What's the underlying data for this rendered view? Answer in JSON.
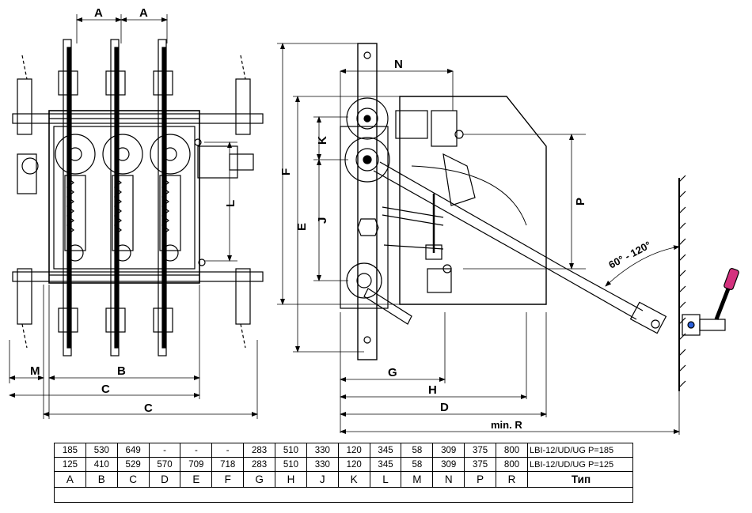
{
  "front_view": {
    "dim_labels": {
      "a1": "A",
      "a2": "A",
      "l": "L",
      "m": "M",
      "b": "B",
      "c_inner": "C",
      "c_outer": "C"
    }
  },
  "side_view": {
    "dim_labels": {
      "n": "N",
      "f": "F",
      "e": "E",
      "k": "K",
      "j": "J",
      "p": "P",
      "g": "G",
      "h": "H",
      "d": "D",
      "min_r": "min. R"
    },
    "angle_label": "60° - 120°"
  },
  "spec_table": {
    "rows": [
      {
        "values": [
          "185",
          "530",
          "649",
          "-",
          "-",
          "-",
          "283",
          "510",
          "330",
          "120",
          "345",
          "58",
          "309",
          "375",
          "800"
        ],
        "type": "LBI-12/UD/UG P=185"
      },
      {
        "values": [
          "125",
          "410",
          "529",
          "570",
          "709",
          "718",
          "283",
          "510",
          "330",
          "120",
          "345",
          "58",
          "309",
          "375",
          "800"
        ],
        "type": "LBI-12/UD/UG P=125"
      }
    ],
    "header": {
      "letters": [
        "A",
        "B",
        "C",
        "D",
        "E",
        "F",
        "G",
        "H",
        "J",
        "K",
        "L",
        "M",
        "N",
        "P",
        "R"
      ],
      "type_label": "Тип"
    }
  }
}
